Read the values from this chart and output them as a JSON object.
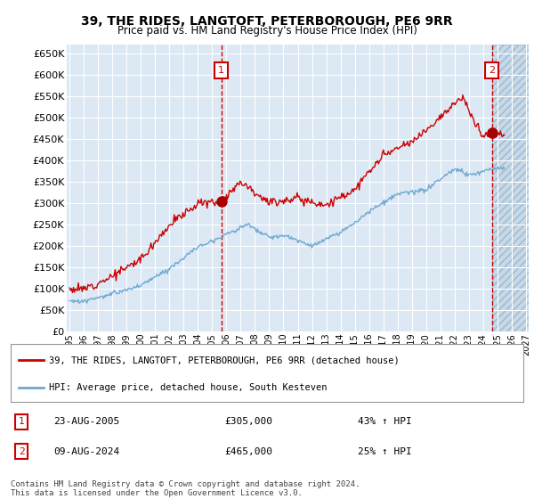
{
  "title": "39, THE RIDES, LANGTOFT, PETERBOROUGH, PE6 9RR",
  "subtitle": "Price paid vs. HM Land Registry's House Price Index (HPI)",
  "yticks": [
    0,
    50000,
    100000,
    150000,
    200000,
    250000,
    300000,
    350000,
    400000,
    450000,
    500000,
    550000,
    600000,
    650000
  ],
  "ylim": [
    0,
    670000
  ],
  "xlim_start": 1994.8,
  "xlim_end": 2027.2,
  "sale1_date": 2005.64,
  "sale1_price": 305000,
  "sale1_label": "1",
  "sale1_text": "23-AUG-2005",
  "sale1_pct": "43% ↑ HPI",
  "sale2_date": 2024.61,
  "sale2_price": 465000,
  "sale2_label": "2",
  "sale2_text": "09-AUG-2024",
  "sale2_pct": "25% ↑ HPI",
  "legend_line1": "39, THE RIDES, LANGTOFT, PETERBOROUGH, PE6 9RR (detached house)",
  "legend_line2": "HPI: Average price, detached house, South Kesteven",
  "footer": "Contains HM Land Registry data © Crown copyright and database right 2024.\nThis data is licensed under the Open Government Licence v3.0.",
  "bg_color": "#dce9f5",
  "hatch_color": "#c5d8eb",
  "red_line_color": "#cc0000",
  "blue_line_color": "#6fa8d0",
  "sale_marker_color": "#aa0000",
  "grid_color": "#ffffff",
  "box_color": "#cc0000"
}
